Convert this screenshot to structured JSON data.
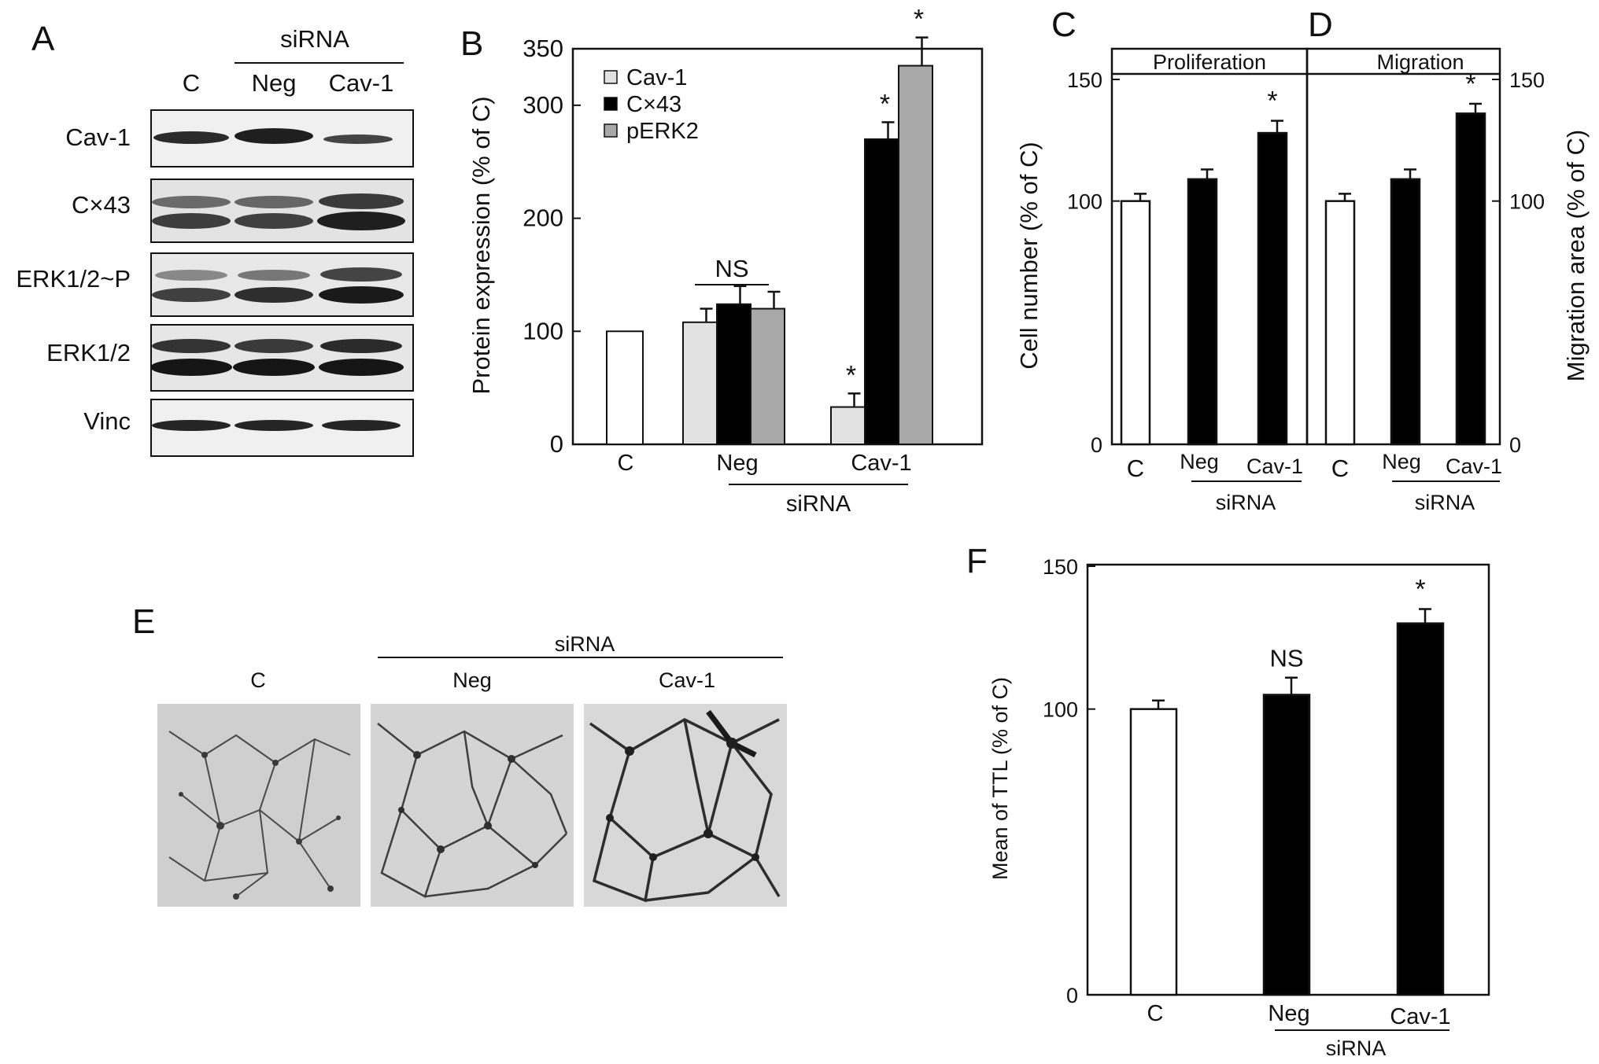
{
  "panels": {
    "A": {
      "letter": "A",
      "header": "siRNA",
      "lanes": [
        "C",
        "Neg",
        "Cav-1"
      ],
      "blots": [
        "Cav-1",
        "C×43",
        "ERK1/2~P",
        "ERK1/2",
        "Vinc"
      ]
    },
    "E": {
      "letter": "E",
      "header": "siRNA",
      "images": [
        "C",
        "Neg",
        "Cav-1"
      ]
    }
  },
  "chart_data": [
    {
      "panel": "B",
      "type": "bar",
      "ylabel": "Protein expression (% of C)",
      "ylim": [
        0,
        350
      ],
      "yticks": [
        0,
        100,
        200,
        300,
        350
      ],
      "categories": [
        "C",
        "Neg",
        "Cav-1"
      ],
      "group_label": "siRNA",
      "series": [
        {
          "name": "Cav-1",
          "color": "#e2e2e2",
          "values": [
            100,
            108,
            33
          ],
          "err": [
            0,
            12,
            12
          ]
        },
        {
          "name": "C×43",
          "color": "#000000",
          "values": [
            null,
            124,
            270
          ],
          "err": [
            0,
            16,
            15
          ]
        },
        {
          "name": "pERK2",
          "color": "#a8a8a8",
          "values": [
            null,
            120,
            335
          ],
          "err": [
            0,
            15,
            25
          ]
        }
      ],
      "annotations": {
        "neg_group": "NS",
        "significant": "*"
      },
      "legend": "top-left"
    },
    {
      "panel": "C",
      "type": "bar",
      "title": "Proliferation",
      "ylabel": "Cell number (% of C)",
      "ylim": [
        0,
        150
      ],
      "yticks": [
        0,
        100,
        150
      ],
      "categories": [
        "C",
        "Neg",
        "Cav-1"
      ],
      "group_label": "siRNA",
      "values": [
        100,
        109,
        128
      ],
      "err": [
        3,
        4,
        5
      ],
      "colors": [
        "#ffffff",
        "#000000",
        "#000000"
      ],
      "significance": [
        "",
        "",
        "*"
      ]
    },
    {
      "panel": "D",
      "type": "bar",
      "title": "Migration",
      "ylabel": "Migration area (% of C)",
      "ylim": [
        0,
        150
      ],
      "yticks": [
        0,
        100,
        150
      ],
      "categories": [
        "C",
        "Neg",
        "Cav-1"
      ],
      "group_label": "siRNA",
      "values": [
        100,
        109,
        136
      ],
      "err": [
        3,
        4,
        4
      ],
      "colors": [
        "#ffffff",
        "#000000",
        "#000000"
      ],
      "significance": [
        "",
        "",
        "*"
      ]
    },
    {
      "panel": "F",
      "type": "bar",
      "ylabel": "Mean of TTL (% of C)",
      "ylim": [
        0,
        150
      ],
      "yticks": [
        0,
        100,
        150
      ],
      "categories": [
        "C",
        "Neg",
        "Cav-1"
      ],
      "group_label": "siRNA",
      "values": [
        100,
        105,
        130
      ],
      "err": [
        3,
        6,
        5
      ],
      "colors": [
        "#ffffff",
        "#000000",
        "#000000"
      ],
      "significance": [
        "",
        "NS",
        "*"
      ]
    }
  ]
}
